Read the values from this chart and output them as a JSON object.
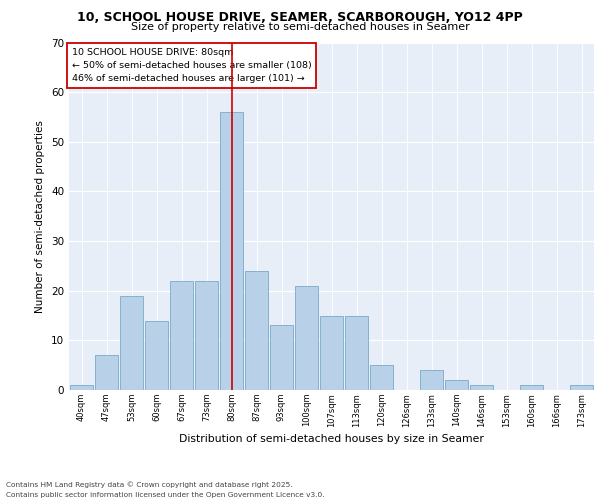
{
  "title1": "10, SCHOOL HOUSE DRIVE, SEAMER, SCARBOROUGH, YO12 4PP",
  "title2": "Size of property relative to semi-detached houses in Seamer",
  "xlabel": "Distribution of semi-detached houses by size in Seamer",
  "ylabel": "Number of semi-detached properties",
  "categories": [
    "40sqm",
    "47sqm",
    "53sqm",
    "60sqm",
    "67sqm",
    "73sqm",
    "80sqm",
    "87sqm",
    "93sqm",
    "100sqm",
    "107sqm",
    "113sqm",
    "120sqm",
    "126sqm",
    "133sqm",
    "140sqm",
    "146sqm",
    "153sqm",
    "160sqm",
    "166sqm",
    "173sqm"
  ],
  "values": [
    1,
    7,
    19,
    14,
    22,
    22,
    56,
    24,
    13,
    21,
    15,
    15,
    5,
    0,
    4,
    2,
    1,
    0,
    1,
    0,
    1
  ],
  "bar_color": "#b8d0e8",
  "bar_edge_color": "#7aaac8",
  "highlight_index": 6,
  "highlight_line_color": "#cc0000",
  "ylim": [
    0,
    70
  ],
  "yticks": [
    0,
    10,
    20,
    30,
    40,
    50,
    60,
    70
  ],
  "annotation_title": "10 SCHOOL HOUSE DRIVE: 80sqm",
  "annotation_line1": "← 50% of semi-detached houses are smaller (108)",
  "annotation_line2": "46% of semi-detached houses are larger (101) →",
  "footer1": "Contains HM Land Registry data © Crown copyright and database right 2025.",
  "footer2": "Contains public sector information licensed under the Open Government Licence v3.0.",
  "background_color": "#e8eef8"
}
